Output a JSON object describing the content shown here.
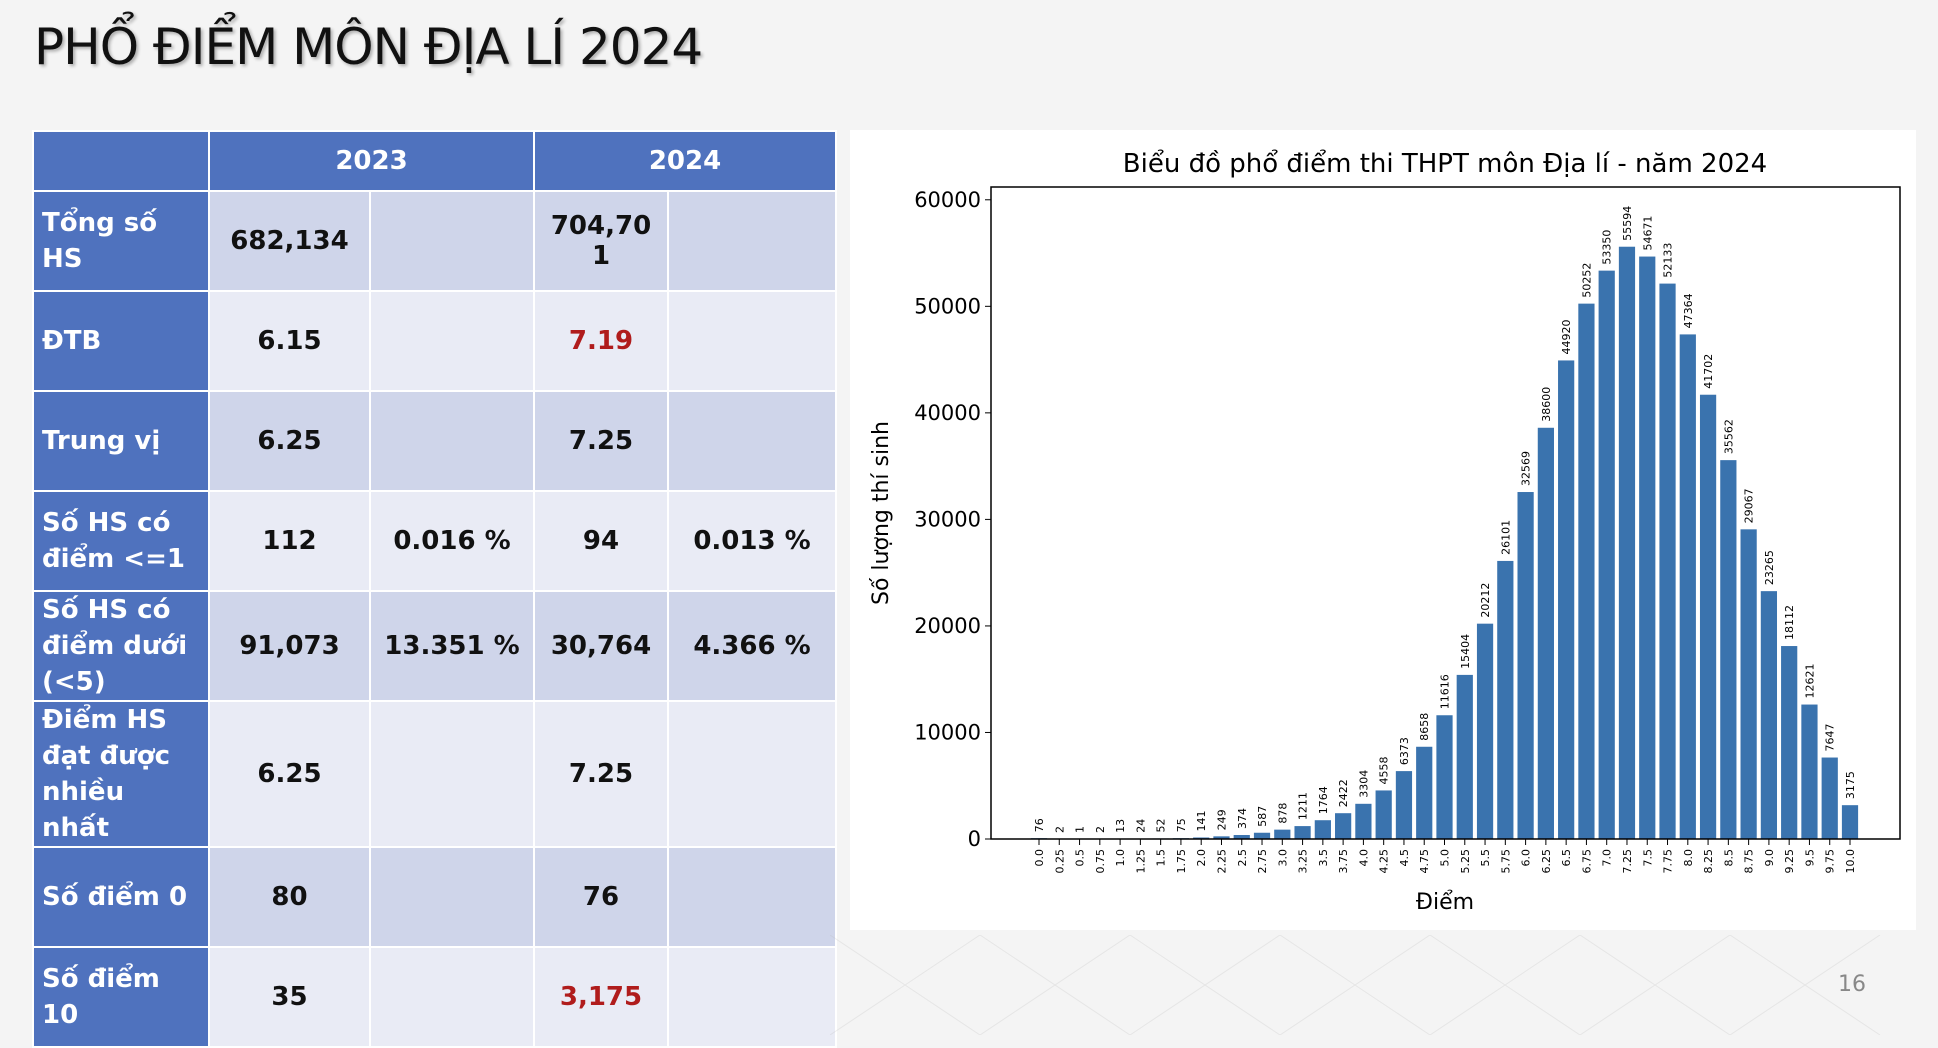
{
  "title": "PHỔ ĐIỂM MÔN ĐỊA LÍ 2024",
  "page_number": "16",
  "table": {
    "headers": [
      "",
      "2023",
      "2024"
    ],
    "rows": [
      {
        "label": "Tổng số HS",
        "v2023": "682,134",
        "p2023": "",
        "v2024": "704,70\n1",
        "p2024": ""
      },
      {
        "label": "ĐTB",
        "v2023": "6.15",
        "p2023": "",
        "v2024": "7.19",
        "p2024": ""
      },
      {
        "label": "Trung vị",
        "v2023": "6.25",
        "p2023": "",
        "v2024": "7.25",
        "p2024": ""
      },
      {
        "label": "Số HS có điểm <=1",
        "v2023": "112",
        "p2023": "0.016 %",
        "v2024": "94",
        "p2024": "0.013 %"
      },
      {
        "label": "Số HS có điểm dưới (<5)",
        "v2023": "91,073",
        "p2023": "13.351 %",
        "v2024": "30,764",
        "p2024": "4.366 %"
      },
      {
        "label": "Điểm HS đạt được nhiều nhất",
        "v2023": "6.25",
        "p2023": "",
        "v2024": "7.25",
        "p2024": ""
      },
      {
        "label": "Số điểm 0",
        "v2023": "80",
        "p2023": "",
        "v2024": "76",
        "p2024": ""
      },
      {
        "label": "Số điểm 10",
        "v2023": "35",
        "p2023": "",
        "v2024": "3,175",
        "p2024": ""
      }
    ],
    "highlight_color": "#b01c1c",
    "header_color": "#4f72be"
  },
  "chart_data": {
    "type": "bar",
    "title": "Biểu đồ phổ điểm thi THPT môn Địa lí - năm 2024",
    "xlabel": "Điểm",
    "ylabel": "Số lượng thí sinh",
    "ylim": [
      0,
      61200
    ],
    "yticks": [
      "0",
      "10000",
      "20000",
      "30000",
      "40000",
      "50000",
      "60000"
    ],
    "bar_color": "#3a73ae",
    "grid": false,
    "categories": [
      "0.0",
      "0.25",
      "0.5",
      "0.75",
      "1.0",
      "1.25",
      "1.5",
      "1.75",
      "2.0",
      "2.25",
      "2.5",
      "2.75",
      "3.0",
      "3.25",
      "3.5",
      "3.75",
      "4.0",
      "4.25",
      "4.5",
      "4.75",
      "5.0",
      "5.25",
      "5.5",
      "5.75",
      "6.0",
      "6.25",
      "6.5",
      "6.75",
      "7.0",
      "7.25",
      "7.5",
      "7.75",
      "8.0",
      "8.25",
      "8.5",
      "8.75",
      "9.0",
      "9.25",
      "9.5",
      "9.75",
      "10.0"
    ],
    "values": [
      76,
      2,
      1,
      2,
      13,
      24,
      52,
      75,
      141,
      249,
      374,
      587,
      878,
      1211,
      1764,
      2422,
      3304,
      4558,
      6373,
      8658,
      11616,
      15404,
      20212,
      26101,
      32569,
      38600,
      44920,
      50252,
      53350,
      55594,
      54671,
      52133,
      47364,
      41702,
      35562,
      29067,
      23265,
      18112,
      12621,
      7647,
      3175
    ]
  }
}
